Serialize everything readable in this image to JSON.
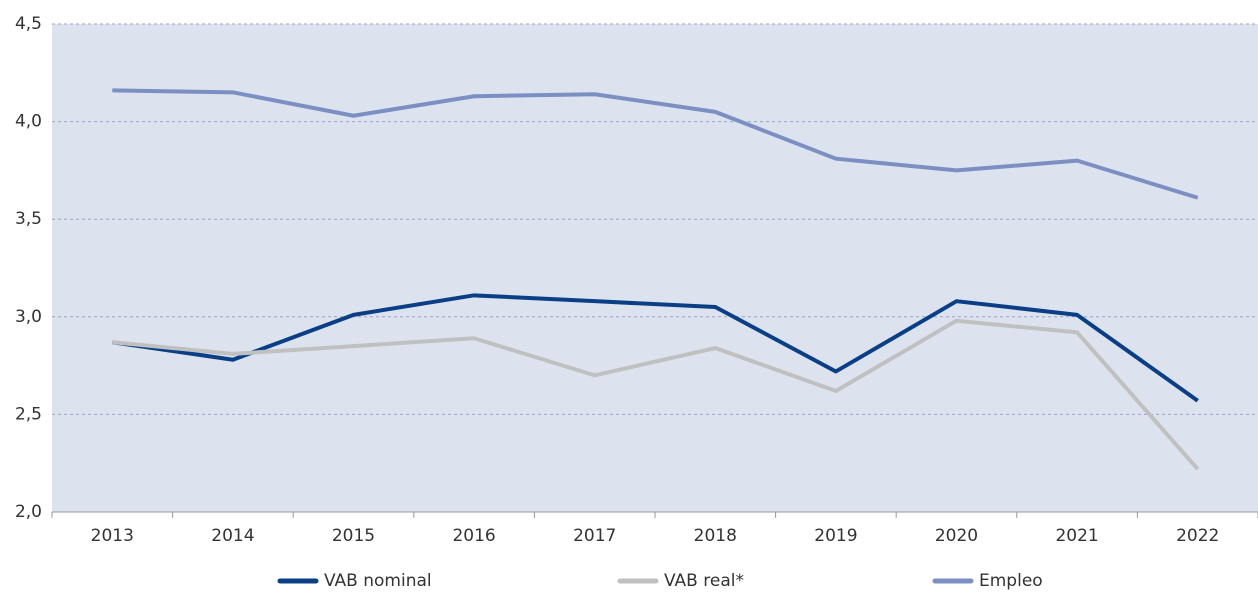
{
  "chart_data": {
    "type": "line",
    "categories": [
      "2013",
      "2014",
      "2015",
      "2016",
      "2017",
      "2018",
      "2019",
      "2020",
      "2021",
      "2022"
    ],
    "series": [
      {
        "name": "VAB nominal",
        "color": "#0a3f86",
        "values": [
          2.87,
          2.78,
          3.01,
          3.11,
          3.08,
          3.05,
          2.72,
          3.08,
          3.01,
          2.57
        ]
      },
      {
        "name": "VAB real*",
        "color": "#c0c0c0",
        "values": [
          2.87,
          2.81,
          2.85,
          2.89,
          2.7,
          2.84,
          2.62,
          2.98,
          2.92,
          2.22
        ]
      },
      {
        "name": "Empleo",
        "color": "#7b8fc2",
        "values": [
          4.16,
          4.15,
          4.03,
          4.13,
          4.14,
          4.05,
          3.81,
          3.75,
          3.8,
          3.61
        ]
      }
    ],
    "ylim": [
      2.0,
      4.5
    ],
    "yticks": [
      {
        "value": 2.0,
        "label": "2,0"
      },
      {
        "value": 2.5,
        "label": "2,5"
      },
      {
        "value": 3.0,
        "label": "3,0"
      },
      {
        "value": 3.5,
        "label": "3,5"
      },
      {
        "value": 4.0,
        "label": "4,0"
      },
      {
        "value": 4.5,
        "label": "4,5"
      }
    ],
    "grid": true,
    "legend": "bottom"
  }
}
